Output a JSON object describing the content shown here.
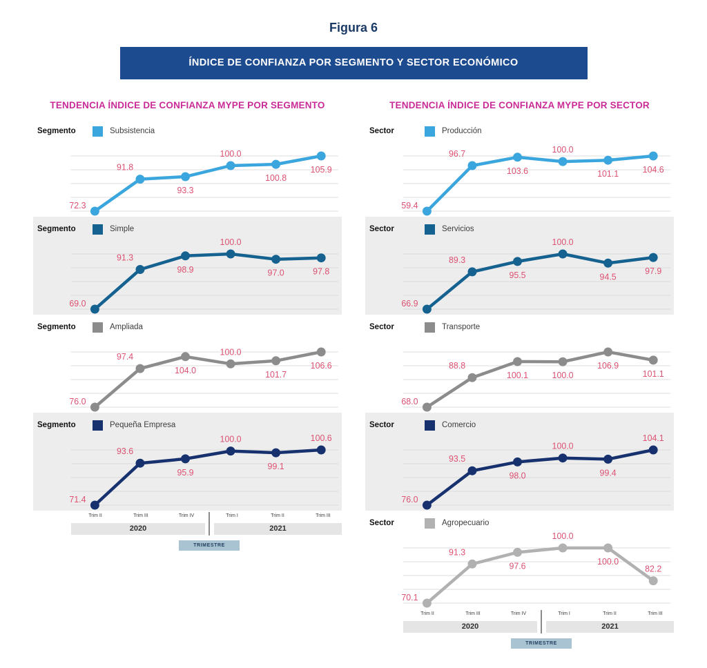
{
  "figure_title": "Figura 6",
  "banner_title": "ÍNDICE DE CONFIANZA POR SEGMENTO Y SECTOR ECONÓMICO",
  "columns": [
    {
      "group": "Segmento",
      "title": "TENDENCIA ÍNDICE DE CONFIANZA MYPE POR SEGMENTO"
    },
    {
      "group": "Sector",
      "title": "TENDENCIA ÍNDICE DE CONFIANZA MYPE POR SECTOR"
    }
  ],
  "axis": {
    "quarters": [
      "Trim II",
      "Trim III",
      "Trim IV",
      "Trim I",
      "Trim II",
      "Trim III"
    ],
    "years": [
      {
        "label": "2020"
      },
      {
        "label": "2021"
      }
    ],
    "title": "TRIMESTRE"
  },
  "colors": {
    "banner_bg": "#1d4b8f",
    "banner_text": "#ffffff",
    "figure_title": "#1b3a66",
    "column_title": "#c92b97",
    "value_label": "#dd5172",
    "panel_alt_bg": "#ededed",
    "gridline": "#dcdcdc",
    "year_band_bg": "#e5e5e5",
    "trimestre_bg": "#a9c3d2",
    "trimestre_text": "#1e3d5c",
    "light_blue": "#3ba6dd",
    "teal_blue": "#15618f",
    "mid_gray": "#8c8c8c",
    "navy": "#16316e",
    "light_gray": "#b1b1b1"
  },
  "chart_data": [
    {
      "type": "line",
      "group": "Segmento",
      "name": "Subsistencia",
      "values": [
        72.3,
        91.8,
        93.3,
        100.0,
        100.8,
        105.9
      ],
      "color": "#3ba6dd",
      "panel_bg": "#ffffff",
      "label_side": [
        "left",
        "above",
        "below",
        "above",
        "below",
        "below"
      ]
    },
    {
      "type": "line",
      "group": "Segmento",
      "name": "Simple",
      "values": [
        69.0,
        91.3,
        98.9,
        100.0,
        97.0,
        97.8
      ],
      "color": "#15618f",
      "panel_bg": "#ededed",
      "label_side": [
        "left",
        "above",
        "below",
        "above",
        "below",
        "below"
      ]
    },
    {
      "type": "line",
      "group": "Segmento",
      "name": "Ampliada",
      "values": [
        76.0,
        97.4,
        104.0,
        100.0,
        101.7,
        106.6
      ],
      "color": "#8c8c8c",
      "panel_bg": "#ffffff",
      "label_side": [
        "left",
        "above",
        "below",
        "above",
        "below",
        "below"
      ]
    },
    {
      "type": "line",
      "group": "Segmento",
      "name": "Pequeña Empresa",
      "values": [
        71.4,
        93.6,
        95.9,
        100.0,
        99.1,
        100.6
      ],
      "color": "#16316e",
      "panel_bg": "#ededed",
      "label_side": [
        "left",
        "above",
        "below",
        "above",
        "below",
        "above"
      ]
    },
    {
      "type": "line",
      "group": "Sector",
      "name": "Producción",
      "values": [
        59.4,
        96.7,
        103.6,
        100.0,
        101.1,
        104.6
      ],
      "color": "#3ba6dd",
      "panel_bg": "#ffffff",
      "label_side": [
        "left",
        "above",
        "below",
        "above",
        "below",
        "below"
      ]
    },
    {
      "type": "line",
      "group": "Sector",
      "name": "Servicios",
      "values": [
        66.9,
        89.3,
        95.5,
        100.0,
        94.5,
        97.9
      ],
      "color": "#15618f",
      "panel_bg": "#ededed",
      "label_side": [
        "left",
        "above",
        "below",
        "above",
        "below",
        "below"
      ]
    },
    {
      "type": "line",
      "group": "Sector",
      "name": "Transporte",
      "values": [
        68.0,
        88.8,
        100.1,
        100.0,
        106.9,
        101.1
      ],
      "color": "#8c8c8c",
      "panel_bg": "#ffffff",
      "label_side": [
        "left",
        "above",
        "below",
        "below",
        "below",
        "below"
      ]
    },
    {
      "type": "line",
      "group": "Sector",
      "name": "Comercio",
      "values": [
        76.0,
        93.5,
        98.0,
        100.0,
        99.4,
        104.1
      ],
      "color": "#16316e",
      "panel_bg": "#ededed",
      "label_side": [
        "left",
        "above",
        "below",
        "above",
        "below",
        "above"
      ]
    },
    {
      "type": "line",
      "group": "Sector",
      "name": "Agropecuario",
      "values": [
        70.1,
        91.3,
        97.6,
        100.0,
        100.0,
        82.2
      ],
      "color": "#b1b1b1",
      "panel_bg": "#ffffff",
      "label_side": [
        "left",
        "above",
        "below",
        "above",
        "below",
        "above"
      ]
    }
  ]
}
